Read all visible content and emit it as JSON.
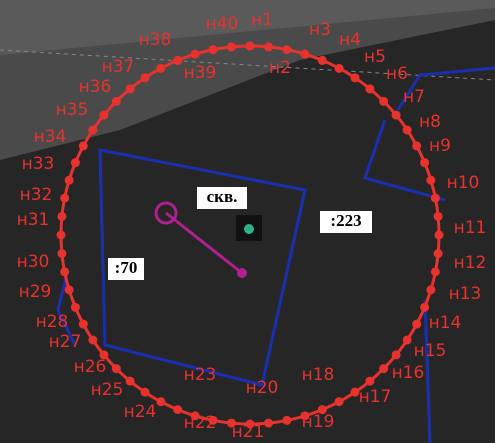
{
  "points": [
    {
      "label": "н1"
    },
    {
      "label": "н2"
    },
    {
      "label": "н3"
    },
    {
      "label": "н4"
    },
    {
      "label": "н5"
    },
    {
      "label": "н6"
    },
    {
      "label": "н7"
    },
    {
      "label": "н8"
    },
    {
      "label": "н9"
    },
    {
      "label": "н10"
    },
    {
      "label": "н11"
    },
    {
      "label": "н12"
    },
    {
      "label": "н13"
    },
    {
      "label": "н14"
    },
    {
      "label": "н15"
    },
    {
      "label": "н16"
    },
    {
      "label": "н17"
    },
    {
      "label": "н18"
    },
    {
      "label": "н19"
    },
    {
      "label": "н20"
    },
    {
      "label": "н21"
    },
    {
      "label": "н22"
    },
    {
      "label": "н23"
    },
    {
      "label": "н24"
    },
    {
      "label": "н25"
    },
    {
      "label": "н26"
    },
    {
      "label": "н27"
    },
    {
      "label": "н28"
    },
    {
      "label": "н29"
    },
    {
      "label": "н30"
    },
    {
      "label": "н31"
    },
    {
      "label": "н32"
    },
    {
      "label": "н33"
    },
    {
      "label": "н34"
    },
    {
      "label": "н35"
    },
    {
      "label": "н36"
    },
    {
      "label": "н37"
    },
    {
      "label": "н38"
    },
    {
      "label": "н39"
    },
    {
      "label": "н40"
    }
  ],
  "well": "скв.",
  "parcels": [
    ":223",
    ":70"
  ]
}
